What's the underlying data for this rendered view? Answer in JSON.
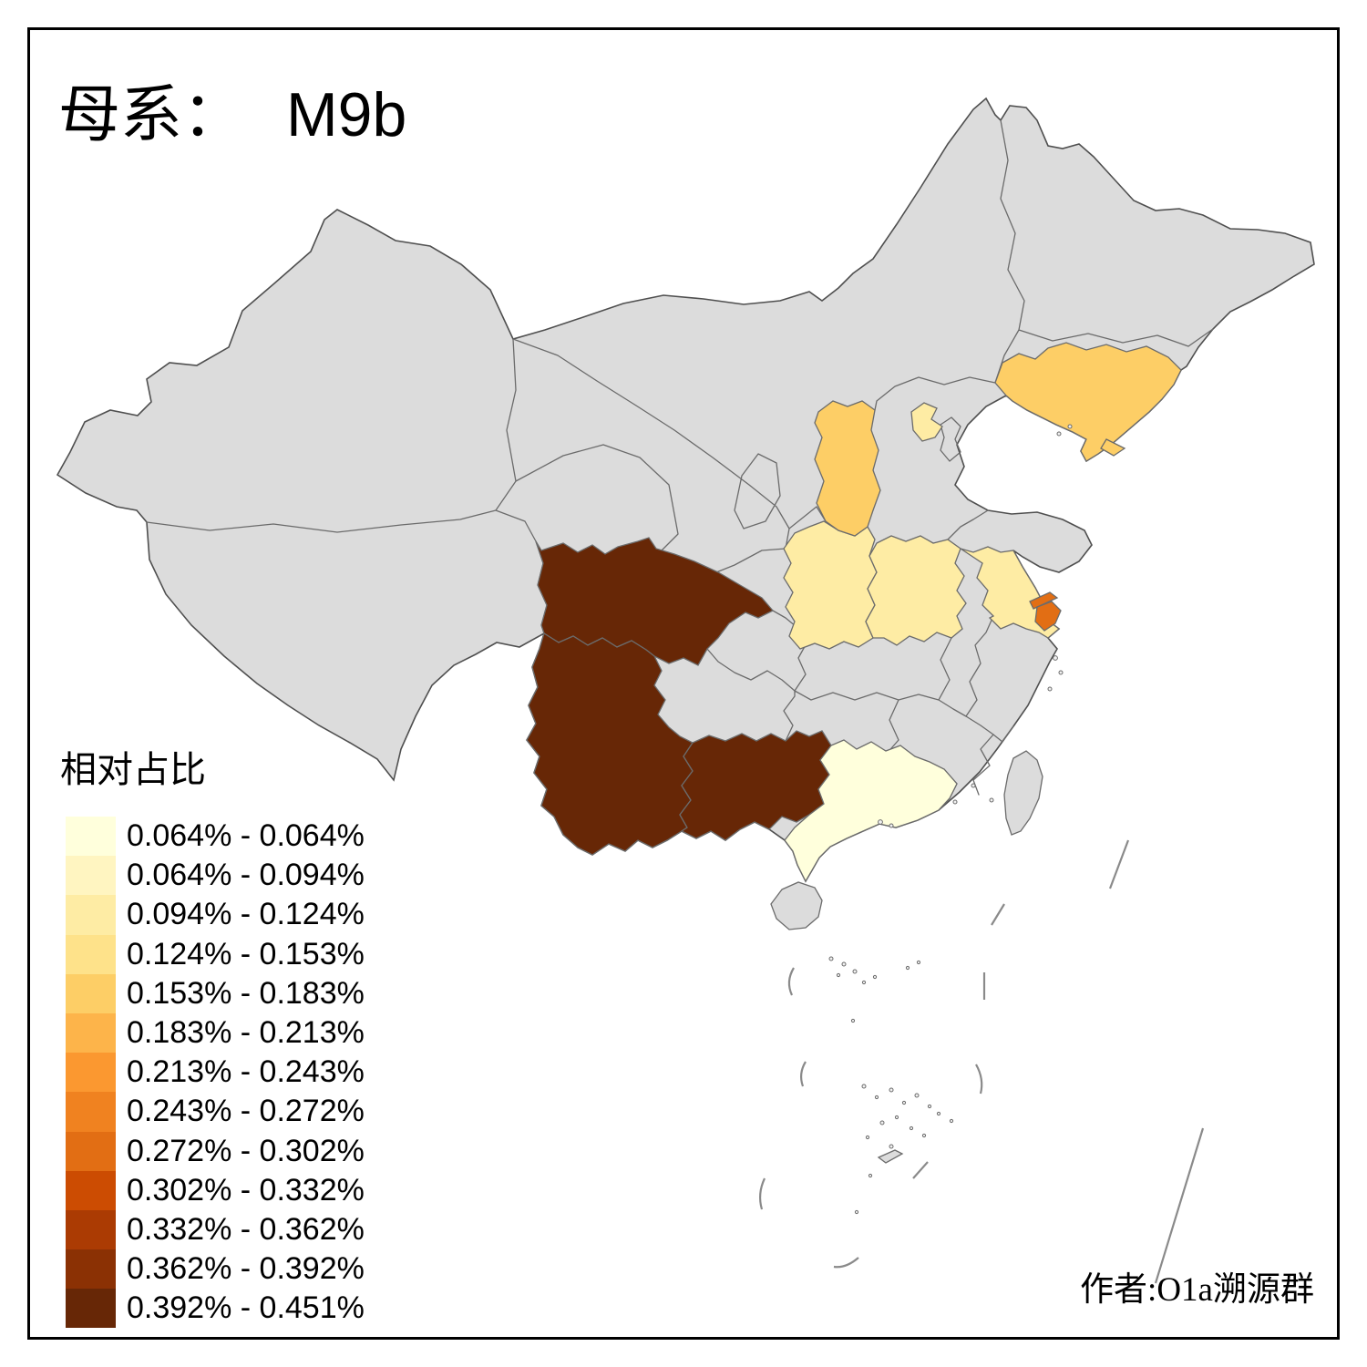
{
  "title": {
    "prefix": "母系：",
    "value": "M9b"
  },
  "legend": {
    "title": "相对占比",
    "classes": [
      {
        "label": "0.064% - 0.064%",
        "color": "#FFFFDC"
      },
      {
        "label": "0.064% - 0.094%",
        "color": "#FFF5C1"
      },
      {
        "label": "0.094% - 0.124%",
        "color": "#FEECA4"
      },
      {
        "label": "0.124% - 0.153%",
        "color": "#FEE28A"
      },
      {
        "label": "0.153% - 0.183%",
        "color": "#FDCE66"
      },
      {
        "label": "0.183% - 0.213%",
        "color": "#FDB44A"
      },
      {
        "label": "0.213% - 0.243%",
        "color": "#FB9830"
      },
      {
        "label": "0.243% - 0.272%",
        "color": "#F08220"
      },
      {
        "label": "0.272% - 0.302%",
        "color": "#E26E14"
      },
      {
        "label": "0.302% - 0.332%",
        "color": "#CC4C02"
      },
      {
        "label": "0.332% - 0.362%",
        "color": "#AB3B03"
      },
      {
        "label": "0.362% - 0.392%",
        "color": "#8B3104"
      },
      {
        "label": "0.392% - 0.451%",
        "color": "#672706"
      }
    ]
  },
  "author": "作者:O1a溯源群",
  "map": {
    "background": "#FFFFFF",
    "base_fill": "#DCDCDC",
    "border_color": "#6B6B6B",
    "outline_color": "#4F4F4F",
    "regions": [
      {
        "id": "sichuan",
        "class_label": "0.392% - 0.451%",
        "color": "#672706"
      },
      {
        "id": "yunnan",
        "class_label": "0.392% - 0.451%",
        "color": "#672706"
      },
      {
        "id": "guangxi",
        "class_label": "0.392% - 0.451%",
        "color": "#672706"
      },
      {
        "id": "shanghai",
        "class_label": "0.272% - 0.302%",
        "color": "#E26E14"
      },
      {
        "id": "liaoning",
        "class_label": "0.153% - 0.183%",
        "color": "#FDCE66"
      },
      {
        "id": "shanxi",
        "class_label": "0.153% - 0.183%",
        "color": "#FDCE66"
      },
      {
        "id": "beijing",
        "class_label": "0.094% - 0.124%",
        "color": "#FEECA4"
      },
      {
        "id": "shaanxi",
        "class_label": "0.094% - 0.124%",
        "color": "#FEECA4"
      },
      {
        "id": "henan",
        "class_label": "0.094% - 0.124%",
        "color": "#FEECA4"
      },
      {
        "id": "jiangsu",
        "class_label": "0.094% - 0.124%",
        "color": "#FEECA4"
      },
      {
        "id": "guangdong",
        "class_label": "0.064% - 0.064%",
        "color": "#FFFFDC"
      }
    ]
  }
}
